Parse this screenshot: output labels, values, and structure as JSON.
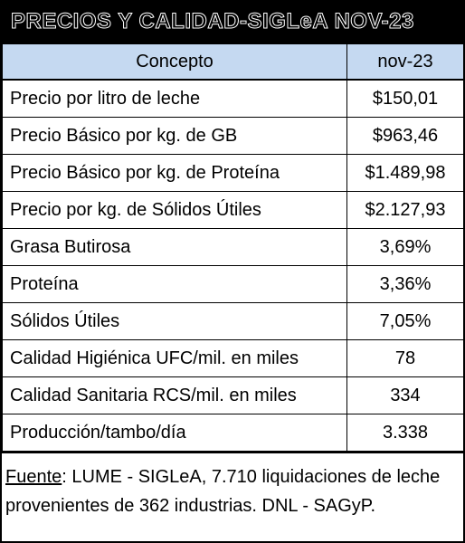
{
  "title": "PRECIOS Y CALIDAD-SIGLeA NOV-23",
  "table": {
    "headers": {
      "concept": "Concepto",
      "period": "nov-23"
    },
    "rows": [
      {
        "concept": "Precio por litro de leche",
        "value": "$150,01"
      },
      {
        "concept": "Precio Básico por kg. de GB",
        "value": "$963,46"
      },
      {
        "concept": "Precio Básico por kg. de Proteína",
        "value": "$1.489,98"
      },
      {
        "concept": "Precio por kg. de Sólidos Útiles",
        "value": "$2.127,93"
      },
      {
        "concept": "Grasa Butirosa",
        "value": "3,69%"
      },
      {
        "concept": "Proteína",
        "value": "3,36%"
      },
      {
        "concept": "Sólidos Útiles",
        "value": "7,05%"
      },
      {
        "concept": "Calidad Higiénica UFC/mil. en miles",
        "value": "78"
      },
      {
        "concept": "Calidad Sanitaria RCS/mil. en miles",
        "value": "334"
      },
      {
        "concept": "Producción/tambo/día",
        "value": "3.338"
      }
    ]
  },
  "footer": {
    "source_label": "Fuente",
    "source_text": ":  LUME - SIGLeA, 7.710 liquidaciones de leche provenientes de 362 industrias. DNL - SAGyP."
  },
  "colors": {
    "header_bg": "#c5d9f1",
    "title_bg": "#000000"
  }
}
